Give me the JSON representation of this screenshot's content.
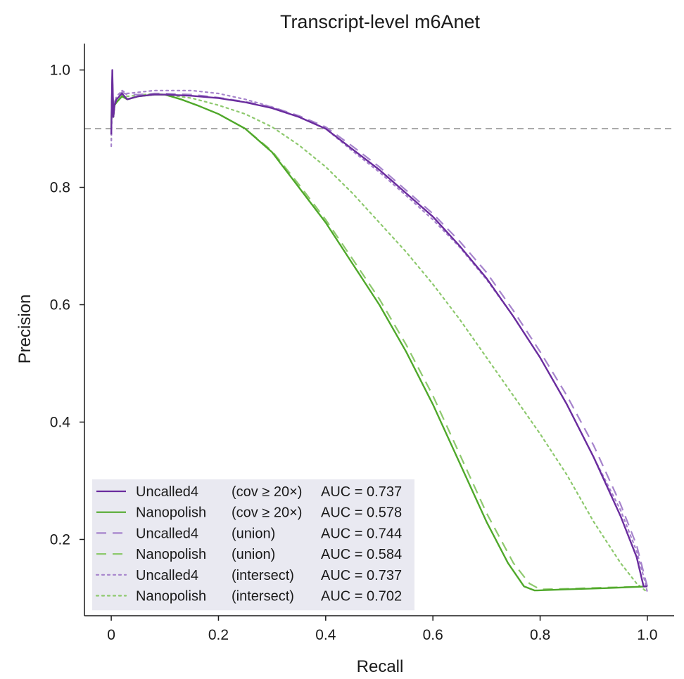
{
  "chart_data": {
    "type": "line",
    "title": "Transcript-level m6Anet",
    "xlabel": "Recall",
    "ylabel": "Precision",
    "xlim": [
      -0.05,
      1.05
    ],
    "ylim": [
      0.07,
      1.045
    ],
    "xticks": [
      0,
      0.2,
      0.4,
      0.6,
      0.8,
      1.0
    ],
    "xtick_labels": [
      "0",
      "0.2",
      "0.4",
      "0.6",
      "0.8",
      "1.0"
    ],
    "yticks": [
      0.2,
      0.4,
      0.6,
      0.8,
      1.0
    ],
    "ytick_labels": [
      "0.2",
      "0.4",
      "0.6",
      "0.8",
      "1.0"
    ],
    "grid": false,
    "legend_position": "bottom-left",
    "reference_line": {
      "y": 0.9,
      "style": "dashed",
      "color": "#aaaaaa"
    },
    "series": [
      {
        "name": "Uncalled4",
        "condition": "(cov ≥ 20×)",
        "auc": "AUC = 0.737",
        "color": "#6a2c9e",
        "dash": "solid",
        "x": [
          0,
          0.002,
          0.004,
          0.006,
          0.01,
          0.02,
          0.03,
          0.05,
          0.08,
          0.1,
          0.15,
          0.2,
          0.25,
          0.3,
          0.35,
          0.4,
          0.45,
          0.5,
          0.55,
          0.6,
          0.65,
          0.7,
          0.75,
          0.8,
          0.85,
          0.9,
          0.95,
          0.98,
          0.993,
          1.0
        ],
        "y": [
          0.89,
          1.0,
          0.92,
          0.94,
          0.95,
          0.96,
          0.95,
          0.955,
          0.958,
          0.958,
          0.956,
          0.952,
          0.945,
          0.935,
          0.92,
          0.9,
          0.865,
          0.83,
          0.79,
          0.75,
          0.7,
          0.645,
          0.58,
          0.51,
          0.43,
          0.34,
          0.24,
          0.17,
          0.12,
          0.12
        ]
      },
      {
        "name": "Nanopolish",
        "condition": "(cov ≥ 20×)",
        "auc": "AUC = 0.578",
        "color": "#4fa82a",
        "dash": "solid",
        "x": [
          0,
          0.002,
          0.004,
          0.006,
          0.01,
          0.02,
          0.03,
          0.05,
          0.08,
          0.1,
          0.13,
          0.16,
          0.2,
          0.25,
          0.3,
          0.35,
          0.4,
          0.45,
          0.5,
          0.55,
          0.6,
          0.65,
          0.7,
          0.74,
          0.77,
          0.79,
          0.85,
          0.92,
          1.0
        ],
        "y": [
          0.9,
          0.985,
          0.92,
          0.94,
          0.945,
          0.955,
          0.95,
          0.955,
          0.958,
          0.958,
          0.95,
          0.94,
          0.925,
          0.9,
          0.86,
          0.8,
          0.74,
          0.67,
          0.6,
          0.52,
          0.43,
          0.33,
          0.23,
          0.16,
          0.12,
          0.113,
          0.115,
          0.117,
          0.12
        ]
      },
      {
        "name": "Uncalled4",
        "condition": "(union)",
        "auc": "AUC = 0.744",
        "color": "#a683cc",
        "dash": "dashed",
        "x": [
          0,
          0.002,
          0.004,
          0.006,
          0.01,
          0.02,
          0.03,
          0.05,
          0.08,
          0.1,
          0.15,
          0.2,
          0.25,
          0.3,
          0.35,
          0.4,
          0.45,
          0.5,
          0.55,
          0.6,
          0.65,
          0.7,
          0.75,
          0.8,
          0.85,
          0.9,
          0.95,
          0.98,
          0.997,
          1.0
        ],
        "y": [
          0.89,
          0.995,
          0.92,
          0.945,
          0.955,
          0.962,
          0.958,
          0.958,
          0.96,
          0.96,
          0.958,
          0.953,
          0.946,
          0.937,
          0.922,
          0.903,
          0.87,
          0.835,
          0.795,
          0.755,
          0.708,
          0.655,
          0.59,
          0.52,
          0.445,
          0.36,
          0.26,
          0.19,
          0.13,
          0.12
        ]
      },
      {
        "name": "Nanopolish",
        "condition": "(union)",
        "auc": "AUC = 0.584",
        "color": "#8ec96e",
        "dash": "dashed",
        "x": [
          0,
          0.002,
          0.004,
          0.006,
          0.01,
          0.02,
          0.03,
          0.05,
          0.08,
          0.1,
          0.13,
          0.16,
          0.2,
          0.25,
          0.3,
          0.35,
          0.4,
          0.45,
          0.5,
          0.55,
          0.6,
          0.65,
          0.7,
          0.75,
          0.78,
          0.8,
          0.85,
          0.92,
          1.0
        ],
        "y": [
          0.9,
          0.98,
          0.92,
          0.94,
          0.945,
          0.955,
          0.95,
          0.955,
          0.958,
          0.958,
          0.95,
          0.94,
          0.925,
          0.9,
          0.862,
          0.805,
          0.745,
          0.678,
          0.61,
          0.532,
          0.445,
          0.345,
          0.245,
          0.16,
          0.125,
          0.115,
          0.116,
          0.118,
          0.12
        ]
      },
      {
        "name": "Uncalled4",
        "condition": "(intersect)",
        "auc": "AUC = 0.737",
        "color": "#a683cc",
        "dash": "dotted",
        "x": [
          0,
          0.002,
          0.004,
          0.006,
          0.01,
          0.02,
          0.03,
          0.05,
          0.08,
          0.1,
          0.15,
          0.2,
          0.25,
          0.3,
          0.35,
          0.4,
          0.45,
          0.5,
          0.55,
          0.6,
          0.65,
          0.7,
          0.75,
          0.8,
          0.85,
          0.9,
          0.95,
          0.98,
          0.995,
          1.0
        ],
        "y": [
          0.87,
          0.99,
          0.92,
          0.945,
          0.955,
          0.965,
          0.96,
          0.962,
          0.965,
          0.965,
          0.965,
          0.96,
          0.95,
          0.937,
          0.92,
          0.9,
          0.862,
          0.826,
          0.786,
          0.745,
          0.698,
          0.643,
          0.58,
          0.51,
          0.43,
          0.34,
          0.25,
          0.18,
          0.13,
          0.11
        ]
      },
      {
        "name": "Nanopolish",
        "condition": "(intersect)",
        "auc": "AUC = 0.702",
        "color": "#8ec96e",
        "dash": "dotted",
        "x": [
          0,
          0.002,
          0.004,
          0.006,
          0.01,
          0.02,
          0.03,
          0.05,
          0.08,
          0.1,
          0.15,
          0.2,
          0.25,
          0.3,
          0.35,
          0.4,
          0.45,
          0.5,
          0.55,
          0.6,
          0.65,
          0.7,
          0.75,
          0.8,
          0.85,
          0.9,
          0.95,
          0.98,
          1.0
        ],
        "y": [
          0.88,
          0.97,
          0.92,
          0.94,
          0.95,
          0.958,
          0.955,
          0.957,
          0.96,
          0.958,
          0.952,
          0.94,
          0.925,
          0.903,
          0.872,
          0.835,
          0.79,
          0.74,
          0.69,
          0.635,
          0.575,
          0.51,
          0.445,
          0.38,
          0.31,
          0.23,
          0.16,
          0.125,
          0.11
        ]
      }
    ]
  }
}
